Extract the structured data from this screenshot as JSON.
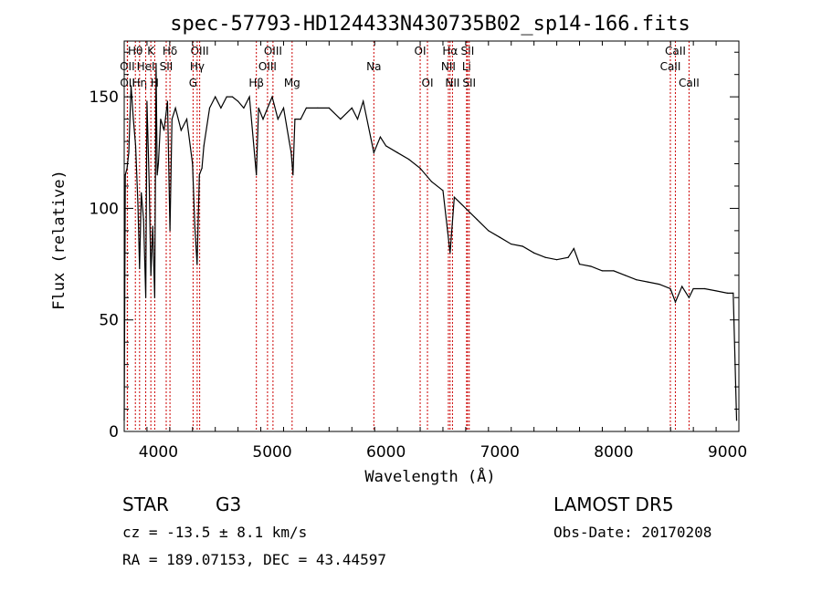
{
  "chart_data": {
    "type": "line",
    "title": "spec-57793-HD124433N430735B02_sp14-166.fits",
    "xlabel": "Wavelength (Å)",
    "ylabel": "Flux (relative)",
    "xlim": [
      3700,
      9100
    ],
    "ylim": [
      0,
      175
    ],
    "xticks": [
      4000,
      5000,
      6000,
      7000,
      8000,
      9000
    ],
    "yticks": [
      0,
      50,
      100,
      150
    ],
    "grid": false,
    "colors": {
      "spectrum": "#000000",
      "line_markers": "#cc0000"
    },
    "series": [
      {
        "x": [
          3700,
          3710,
          3725,
          3740,
          3760,
          3780,
          3800,
          3820,
          3835,
          3850,
          3870,
          3889,
          3900,
          3920,
          3934,
          3950,
          3968,
          3980,
          3990,
          4000,
          4020,
          4050,
          4080,
          4102,
          4120,
          4150,
          4200,
          4250,
          4300,
          4320,
          4340,
          4360,
          4383,
          4400,
          4450,
          4500,
          4550,
          4600,
          4650,
          4700,
          4750,
          4800,
          4861,
          4880,
          4920,
          5000,
          5050,
          5100,
          5150,
          5167,
          5183,
          5200,
          5250,
          5300,
          5400,
          5500,
          5600,
          5700,
          5750,
          5800,
          5893,
          5950,
          6000,
          6100,
          6200,
          6300,
          6400,
          6500,
          6563,
          6600,
          6700,
          6800,
          6900,
          7000,
          7100,
          7200,
          7300,
          7400,
          7500,
          7600,
          7650,
          7700,
          7800,
          7900,
          8000,
          8100,
          8200,
          8300,
          8400,
          8498,
          8542,
          8600,
          8662,
          8700,
          8800,
          8900,
          9000,
          9050,
          9080
        ],
        "y": [
          5,
          115,
          118,
          125,
          155,
          140,
          128,
          102,
          73,
          107,
          95,
          60,
          148,
          110,
          70,
          92,
          60,
          165,
          115,
          120,
          140,
          135,
          148,
          90,
          140,
          145,
          135,
          140,
          120,
          92,
          75,
          115,
          118,
          128,
          145,
          150,
          145,
          150,
          150,
          148,
          145,
          150,
          115,
          145,
          140,
          150,
          140,
          145,
          130,
          125,
          115,
          140,
          140,
          145,
          145,
          145,
          140,
          145,
          140,
          148,
          125,
          132,
          128,
          125,
          122,
          118,
          112,
          108,
          80,
          105,
          100,
          95,
          90,
          87,
          84,
          83,
          80,
          78,
          77,
          78,
          82,
          75,
          74,
          72,
          72,
          70,
          68,
          67,
          66,
          64,
          58,
          65,
          60,
          64,
          64,
          63,
          62,
          62,
          5
        ]
      }
    ],
    "line_markers": [
      {
        "label": "Hθ",
        "wl": 3798,
        "row": 1
      },
      {
        "label": "OII",
        "wl": 3727,
        "row": 2
      },
      {
        "label": "OII",
        "wl": 3729,
        "row": 3
      },
      {
        "label": "Hη",
        "wl": 3835,
        "row": 3
      },
      {
        "label": "HeI",
        "wl": 3889,
        "row": 2
      },
      {
        "label": "K",
        "wl": 3934,
        "row": 1
      },
      {
        "label": "H",
        "wl": 3968,
        "row": 3
      },
      {
        "label": "SII",
        "wl": 4069,
        "row": 2
      },
      {
        "label": "Hδ",
        "wl": 4102,
        "row": 1
      },
      {
        "label": "OIII",
        "wl": 4363,
        "row": 1
      },
      {
        "label": "Hγ",
        "wl": 4341,
        "row": 2
      },
      {
        "label": "G",
        "wl": 4305,
        "row": 3
      },
      {
        "label": "Hβ",
        "wl": 4861,
        "row": 3
      },
      {
        "label": "OIII",
        "wl": 5007,
        "row": 1
      },
      {
        "label": "OIII",
        "wl": 4959,
        "row": 2
      },
      {
        "label": "Mg",
        "wl": 5175,
        "row": 3
      },
      {
        "label": "Na",
        "wl": 5893,
        "row": 2
      },
      {
        "label": "OI",
        "wl": 6300,
        "row": 1
      },
      {
        "label": "OI",
        "wl": 6364,
        "row": 3
      },
      {
        "label": "Hα",
        "wl": 6563,
        "row": 1
      },
      {
        "label": "NII",
        "wl": 6548,
        "row": 2
      },
      {
        "label": "NII",
        "wl": 6584,
        "row": 3
      },
      {
        "label": "SII",
        "wl": 6716,
        "row": 1
      },
      {
        "label": "Li",
        "wl": 6708,
        "row": 2
      },
      {
        "label": "SII",
        "wl": 6731,
        "row": 3
      },
      {
        "label": "CaII",
        "wl": 8542,
        "row": 1
      },
      {
        "label": "CaII",
        "wl": 8498,
        "row": 2
      },
      {
        "label": "CaII",
        "wl": 8662,
        "row": 3
      }
    ]
  },
  "info": {
    "class": "STAR",
    "subclass": "G3",
    "survey": "LAMOST DR5",
    "cz": "cz = -13.5 ± 8.1 km/s",
    "obs_date": "Obs-Date: 20170208",
    "coords": "RA = 189.07153, DEC =  43.44597"
  }
}
